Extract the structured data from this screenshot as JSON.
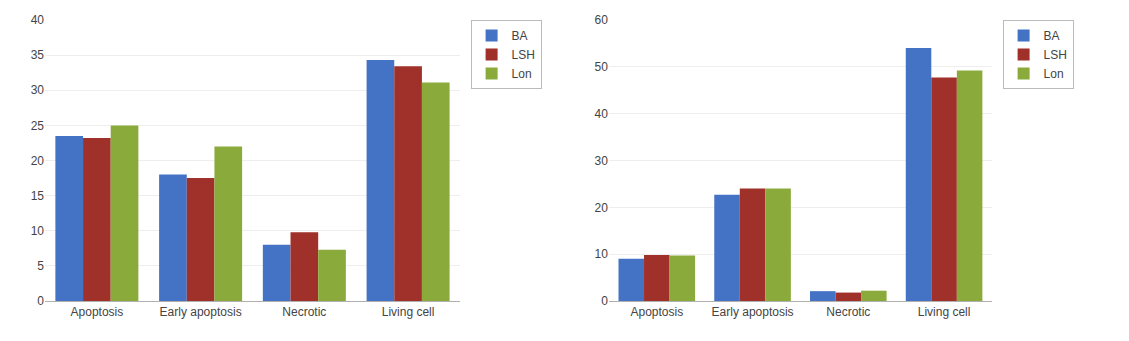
{
  "chart_data": [
    {
      "type": "bar",
      "categories": [
        "Apoptosis",
        "Early apoptosis",
        "Necrotic",
        "Living cell"
      ],
      "series": [
        {
          "name": "BA",
          "color": "#4472C4",
          "values": [
            23.5,
            18.0,
            8.0,
            34.3
          ]
        },
        {
          "name": "LSH",
          "color": "#A0312A",
          "values": [
            23.2,
            17.5,
            9.8,
            33.4
          ]
        },
        {
          "name": "Lon",
          "color": "#8AAB3C",
          "values": [
            25.0,
            22.0,
            7.3,
            31.1
          ]
        }
      ],
      "ylim": [
        0,
        40
      ],
      "yticks": [
        0,
        5,
        10,
        15,
        20,
        25,
        30,
        35,
        40
      ],
      "grid": true,
      "legend": "upper right"
    },
    {
      "type": "bar",
      "categories": [
        "Apoptosis",
        "Early apoptosis",
        "Necrotic",
        "Living cell"
      ],
      "series": [
        {
          "name": "BA",
          "color": "#4472C4",
          "values": [
            9.0,
            22.7,
            2.1,
            54.0
          ]
        },
        {
          "name": "LSH",
          "color": "#A0312A",
          "values": [
            9.8,
            24.0,
            1.8,
            47.7
          ]
        },
        {
          "name": "Lon",
          "color": "#8AAB3C",
          "values": [
            9.7,
            24.0,
            2.2,
            49.2
          ]
        }
      ],
      "ylim": [
        0,
        60
      ],
      "yticks": [
        0,
        10,
        20,
        30,
        40,
        50,
        60
      ],
      "grid": true,
      "legend": "upper right"
    }
  ]
}
